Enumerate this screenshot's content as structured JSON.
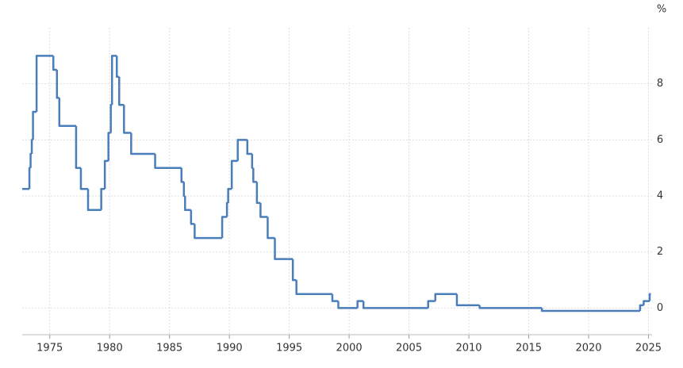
{
  "chart_data": {
    "type": "step",
    "unit": "%",
    "x": [
      1972.7,
      1973.3,
      1973.4,
      1973.5,
      1973.6,
      1973.9,
      1975.3,
      1975.6,
      1975.8,
      1977.2,
      1977.6,
      1978.2,
      1979.3,
      1979.6,
      1979.9,
      1980.1,
      1980.2,
      1980.6,
      1980.8,
      1981.2,
      1981.8,
      1983.8,
      1986.0,
      1986.2,
      1986.3,
      1986.8,
      1987.1,
      1989.4,
      1989.8,
      1989.9,
      1990.2,
      1990.7,
      1991.5,
      1991.9,
      1992.0,
      1992.3,
      1992.6,
      1993.2,
      1993.8,
      1995.3,
      1995.6,
      1998.6,
      1999.1,
      2000.7,
      2001.2,
      2006.6,
      2007.2,
      2009.0,
      2010.9,
      2016.1,
      2024.3,
      2024.6,
      2025.1,
      2025.2
    ],
    "series": [
      {
        "color": "#4a7ebb",
        "values": [
          4.25,
          5.0,
          5.5,
          6.0,
          7.0,
          9.0,
          8.5,
          7.5,
          6.5,
          5.0,
          4.25,
          3.5,
          4.25,
          5.25,
          6.25,
          7.25,
          9.0,
          8.25,
          7.25,
          6.25,
          5.5,
          5.0,
          4.5,
          4.0,
          3.5,
          3.0,
          2.5,
          3.25,
          3.75,
          4.25,
          5.25,
          6.0,
          5.5,
          5.0,
          4.5,
          3.75,
          3.25,
          2.5,
          1.75,
          1.0,
          0.5,
          0.25,
          0.0,
          0.25,
          0.0,
          0.25,
          0.5,
          0.1,
          0.0,
          -0.1,
          0.1,
          0.25,
          0.5,
          0.5
        ]
      }
    ],
    "xlim": [
      1972.7,
      2025.3
    ],
    "xticks": [
      1975,
      1980,
      1985,
      1990,
      1995,
      2000,
      2005,
      2010,
      2015,
      2020,
      2025
    ],
    "ylim": [
      -0.95,
      10
    ],
    "yticks": [
      0,
      2,
      4,
      6,
      8
    ],
    "grid": true
  }
}
